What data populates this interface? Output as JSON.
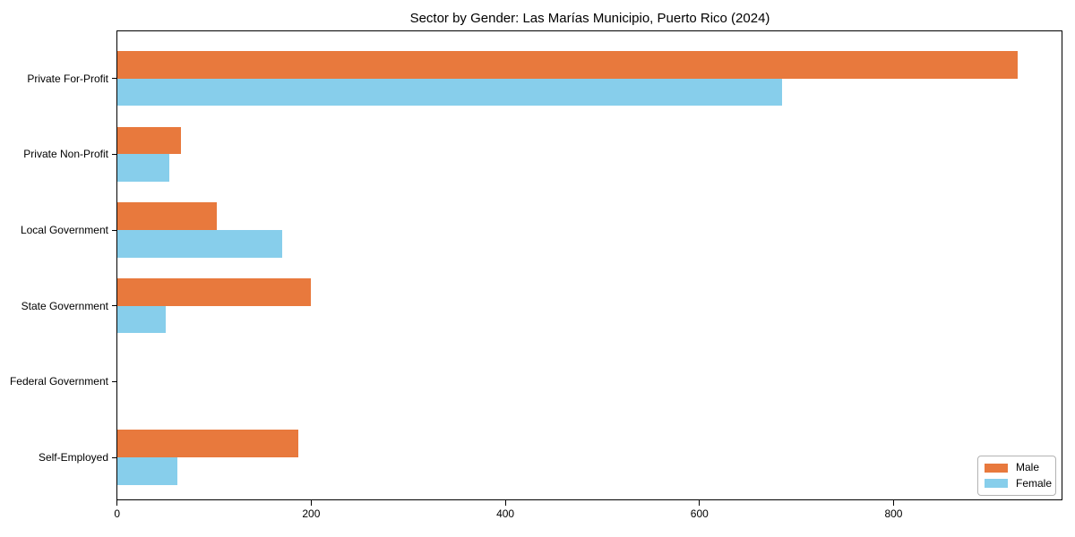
{
  "chart_data": {
    "type": "bar",
    "orientation": "horizontal",
    "title": "Sector by Gender: Las Marías Municipio, Puerto Rico (2024)",
    "categories": [
      "Private For-Profit",
      "Private Non-Profit",
      "Local Government",
      "State Government",
      "Federal Government",
      "Self-Employed"
    ],
    "series": [
      {
        "name": "Male",
        "color": "#E8793D",
        "values": [
          928,
          66,
          103,
          200,
          0,
          187
        ]
      },
      {
        "name": "Female",
        "color": "#87CEEB",
        "values": [
          685,
          54,
          170,
          50,
          0,
          62
        ]
      }
    ],
    "xlabel": "",
    "ylabel": "",
    "xlim": [
      0,
      974
    ],
    "xticks": [
      0,
      200,
      400,
      600,
      800
    ],
    "grid": false,
    "legend_position": "lower right",
    "axis_color": "#000000",
    "background": "#FFFFFF"
  }
}
